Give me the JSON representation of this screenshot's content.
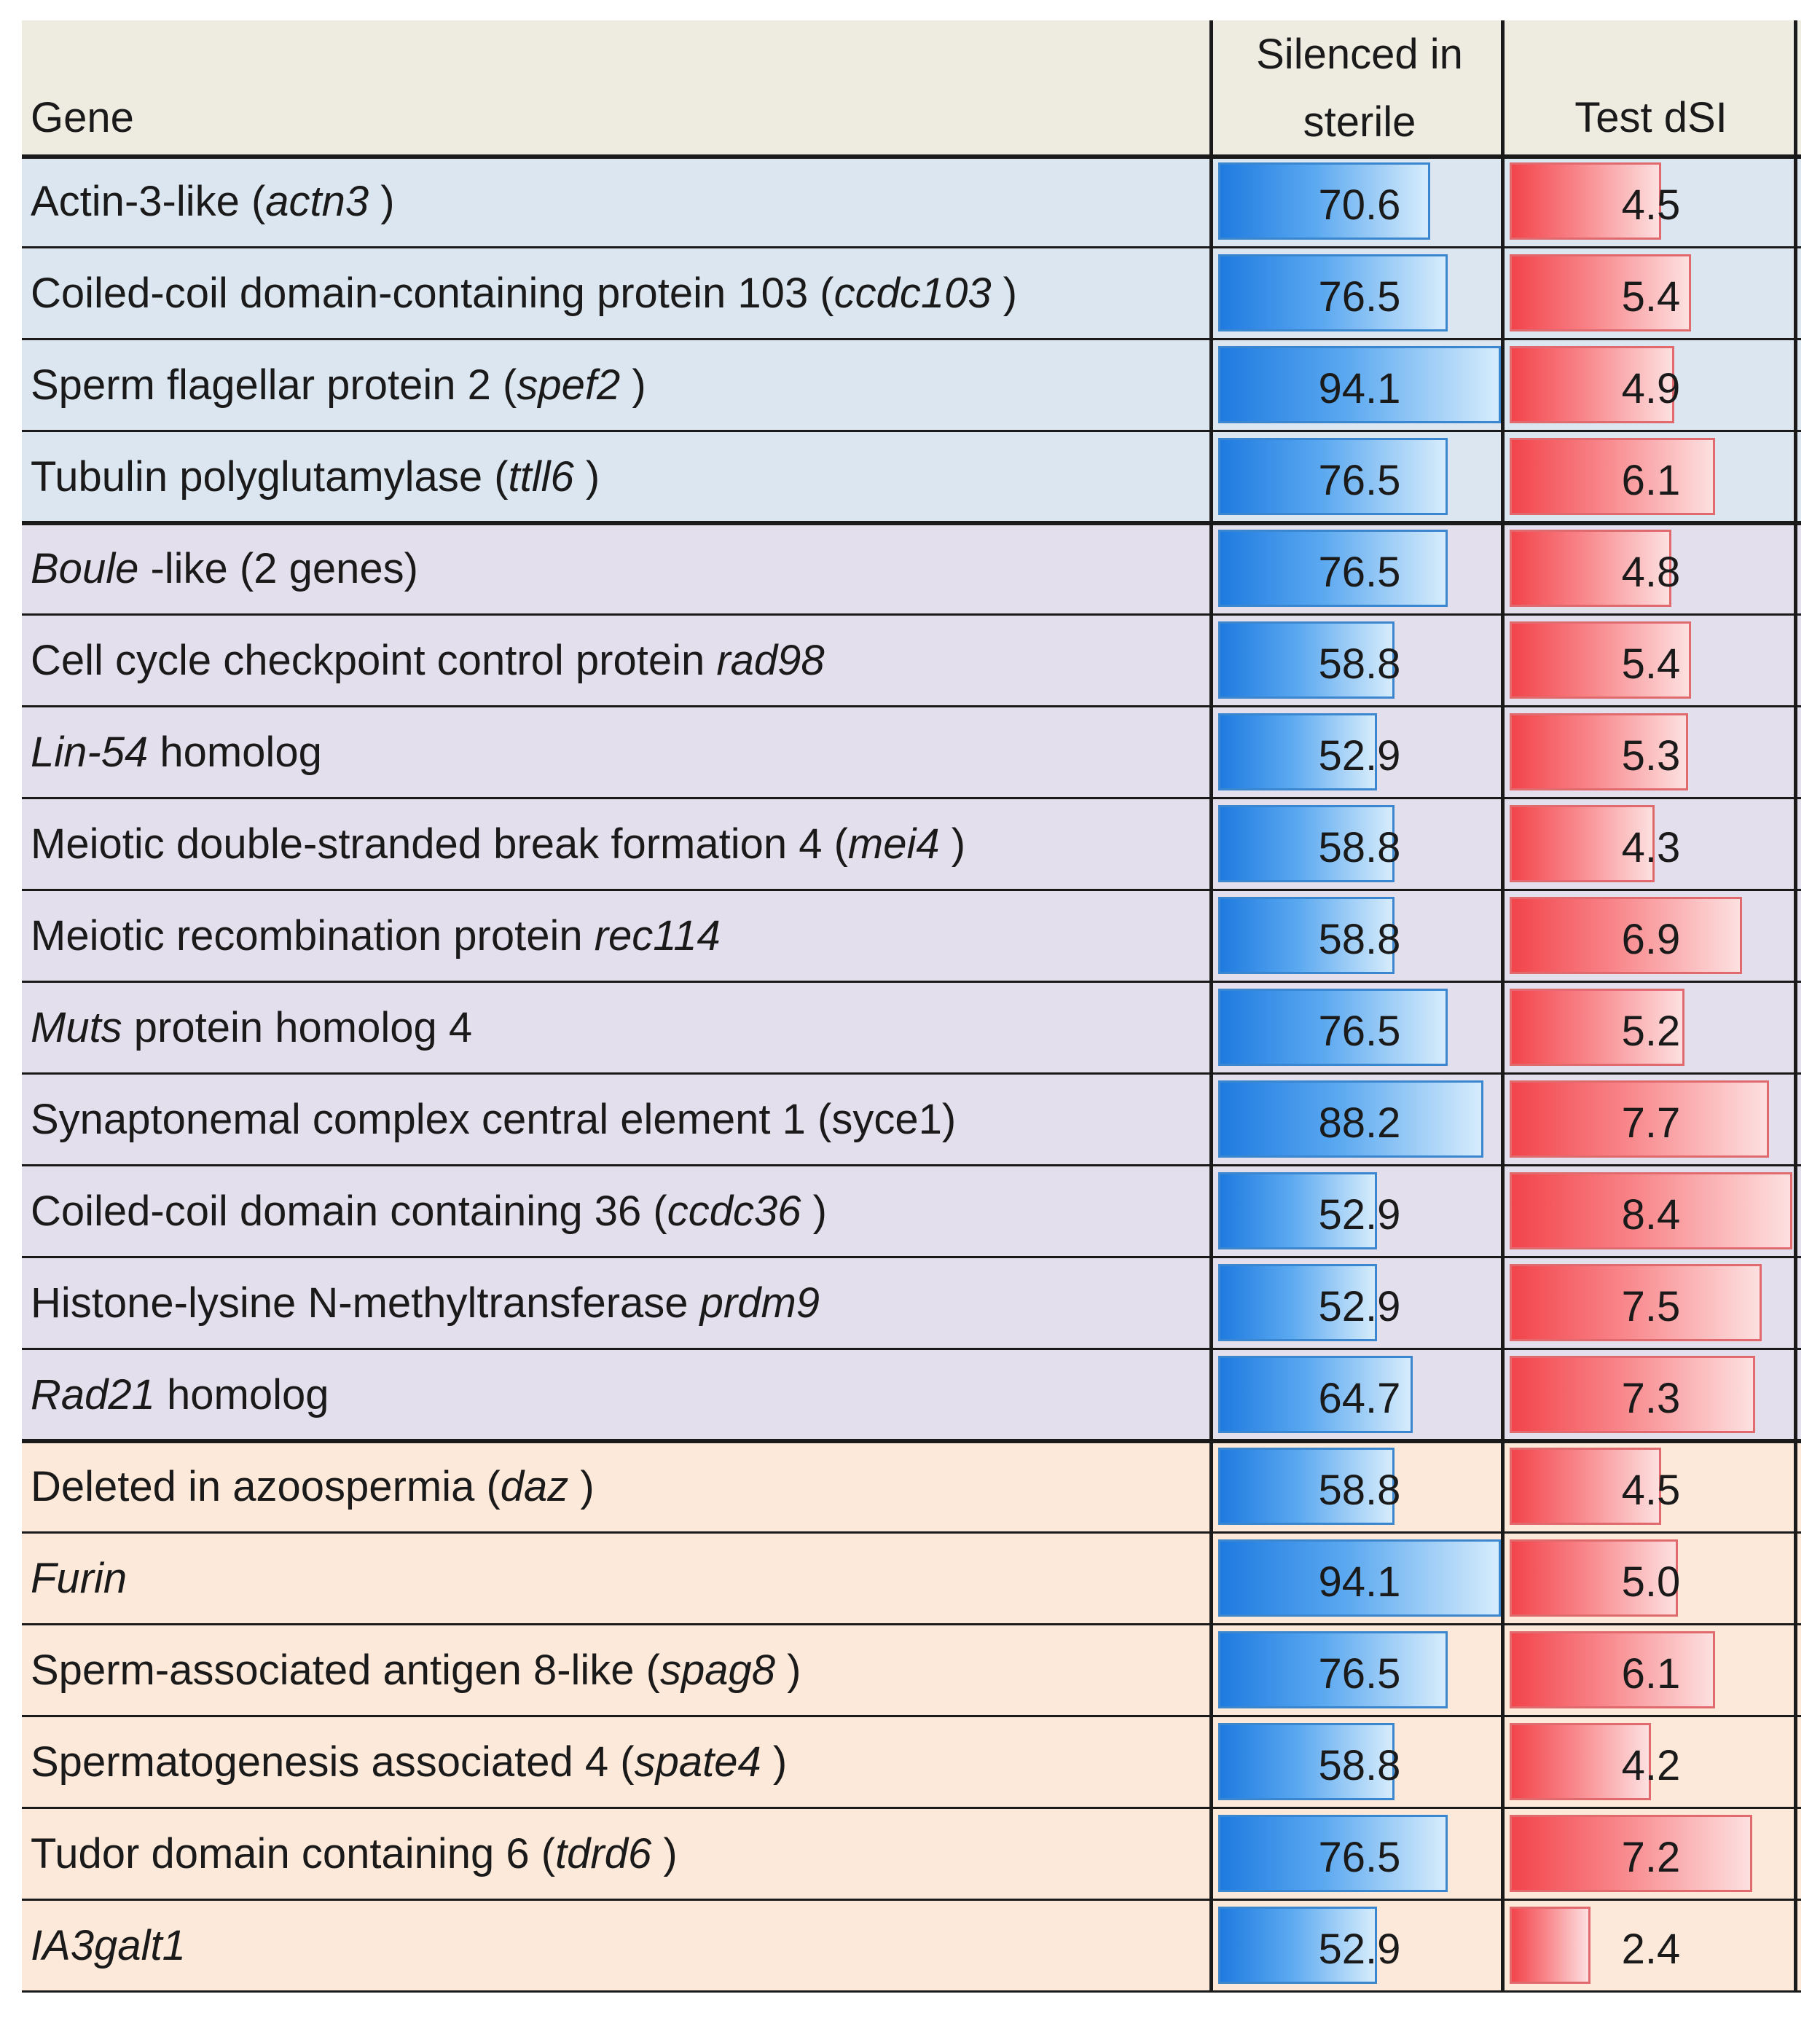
{
  "header": {
    "gene": "Gene",
    "silenced": "Silenced in\nsterile",
    "test_dsi": "Test dSI"
  },
  "scales": {
    "silenced_max": 94.1,
    "dsi_max": 8.4
  },
  "colors": {
    "group1_bg": "#dce6f0",
    "group2_bg": "#e4dfec",
    "group3_bg": "#fde9d9",
    "header_bg": "#eeece1",
    "blue_bar": "#1f7be0",
    "red_bar": "#f2444b"
  },
  "rows": [
    {
      "group": 1,
      "name": [
        {
          "t": "Actin-3-like ("
        },
        {
          "t": "actn3",
          "i": true
        },
        {
          "t": " )"
        }
      ],
      "silenced": 70.6,
      "silenced_label": "70.6",
      "dsi": 4.5,
      "dsi_label": "4.5"
    },
    {
      "group": 1,
      "name": [
        {
          "t": "Coiled-coil domain-containing protein 103 ("
        },
        {
          "t": "ccdc103",
          "i": true
        },
        {
          "t": " )"
        }
      ],
      "silenced": 76.5,
      "silenced_label": "76.5",
      "dsi": 5.4,
      "dsi_label": "5.4"
    },
    {
      "group": 1,
      "name": [
        {
          "t": "Sperm flagellar protein 2 ("
        },
        {
          "t": "spef2",
          "i": true
        },
        {
          "t": " )"
        }
      ],
      "silenced": 94.1,
      "silenced_label": "94.1",
      "dsi": 4.9,
      "dsi_label": "4.9"
    },
    {
      "group": 1,
      "name": [
        {
          "t": "Tubulin polyglutamylase ("
        },
        {
          "t": "ttll6",
          "i": true
        },
        {
          "t": " )"
        }
      ],
      "silenced": 76.5,
      "silenced_label": "76.5",
      "dsi": 6.1,
      "dsi_label": "6.1"
    },
    {
      "group": 2,
      "name": [
        {
          "t": "Boule",
          "i": true
        },
        {
          "t": " -like (2 genes)"
        }
      ],
      "silenced": 76.5,
      "silenced_label": "76.5",
      "dsi": 4.8,
      "dsi_label": "4.8"
    },
    {
      "group": 2,
      "name": [
        {
          "t": "Cell cycle checkpoint control protein "
        },
        {
          "t": "rad98",
          "i": true
        }
      ],
      "silenced": 58.8,
      "silenced_label": "58.8",
      "dsi": 5.4,
      "dsi_label": "5.4"
    },
    {
      "group": 2,
      "name": [
        {
          "t": "Lin-54",
          "i": true
        },
        {
          "t": "  homolog"
        }
      ],
      "silenced": 52.9,
      "silenced_label": "52.9",
      "dsi": 5.3,
      "dsi_label": "5.3"
    },
    {
      "group": 2,
      "name": [
        {
          "t": "Meiotic double-stranded break formation 4 ("
        },
        {
          "t": "mei4",
          "i": true
        },
        {
          "t": " )"
        }
      ],
      "silenced": 58.8,
      "silenced_label": "58.8",
      "dsi": 4.3,
      "dsi_label": "4.3"
    },
    {
      "group": 2,
      "name": [
        {
          "t": "Meiotic recombination protein "
        },
        {
          "t": "rec114",
          "i": true
        }
      ],
      "silenced": 58.8,
      "silenced_label": "58.8",
      "dsi": 6.9,
      "dsi_label": "6.9"
    },
    {
      "group": 2,
      "name": [
        {
          "t": "Muts",
          "i": true
        },
        {
          "t": "  protein homolog 4"
        }
      ],
      "silenced": 76.5,
      "silenced_label": "76.5",
      "dsi": 5.2,
      "dsi_label": "5.2"
    },
    {
      "group": 2,
      "name": [
        {
          "t": "Synaptonemal complex central element 1 (syce1)"
        }
      ],
      "silenced": 88.2,
      "silenced_label": "88.2",
      "dsi": 7.7,
      "dsi_label": "7.7"
    },
    {
      "group": 2,
      "name": [
        {
          "t": "Coiled-coil domain containing 36 ("
        },
        {
          "t": "ccdc36",
          "i": true
        },
        {
          "t": " )"
        }
      ],
      "silenced": 52.9,
      "silenced_label": "52.9",
      "dsi": 8.4,
      "dsi_label": "8.4"
    },
    {
      "group": 2,
      "name": [
        {
          "t": "Histone-lysine N-methyltransferase "
        },
        {
          "t": "prdm9",
          "i": true
        }
      ],
      "silenced": 52.9,
      "silenced_label": "52.9",
      "dsi": 7.5,
      "dsi_label": "7.5"
    },
    {
      "group": 2,
      "name": [
        {
          "t": "Rad21",
          "i": true
        },
        {
          "t": "  homolog"
        }
      ],
      "silenced": 64.7,
      "silenced_label": "64.7",
      "dsi": 7.3,
      "dsi_label": "7.3"
    },
    {
      "group": 3,
      "name": [
        {
          "t": "Deleted in azoospermia ("
        },
        {
          "t": "daz",
          "i": true
        },
        {
          "t": " )"
        }
      ],
      "silenced": 58.8,
      "silenced_label": "58.8",
      "dsi": 4.5,
      "dsi_label": "4.5"
    },
    {
      "group": 3,
      "name": [
        {
          "t": "Furin",
          "i": true
        }
      ],
      "silenced": 94.1,
      "silenced_label": "94.1",
      "dsi": 5.0,
      "dsi_label": "5.0"
    },
    {
      "group": 3,
      "name": [
        {
          "t": "Sperm-associated antigen 8-like ("
        },
        {
          "t": "spag8",
          "i": true
        },
        {
          "t": " )"
        }
      ],
      "silenced": 76.5,
      "silenced_label": "76.5",
      "dsi": 6.1,
      "dsi_label": "6.1"
    },
    {
      "group": 3,
      "name": [
        {
          "t": "Spermatogenesis associated 4 ("
        },
        {
          "t": "spate4",
          "i": true
        },
        {
          "t": " )"
        }
      ],
      "silenced": 58.8,
      "silenced_label": "58.8",
      "dsi": 4.2,
      "dsi_label": "4.2"
    },
    {
      "group": 3,
      "name": [
        {
          "t": "Tudor domain containing 6 ("
        },
        {
          "t": "tdrd6",
          "i": true
        },
        {
          "t": " )"
        }
      ],
      "silenced": 76.5,
      "silenced_label": "76.5",
      "dsi": 7.2,
      "dsi_label": "7.2"
    },
    {
      "group": 3,
      "name": [
        {
          "t": "IA3galt1",
          "i": true
        }
      ],
      "silenced": 52.9,
      "silenced_label": "52.9",
      "dsi": 2.4,
      "dsi_label": "2.4"
    }
  ]
}
